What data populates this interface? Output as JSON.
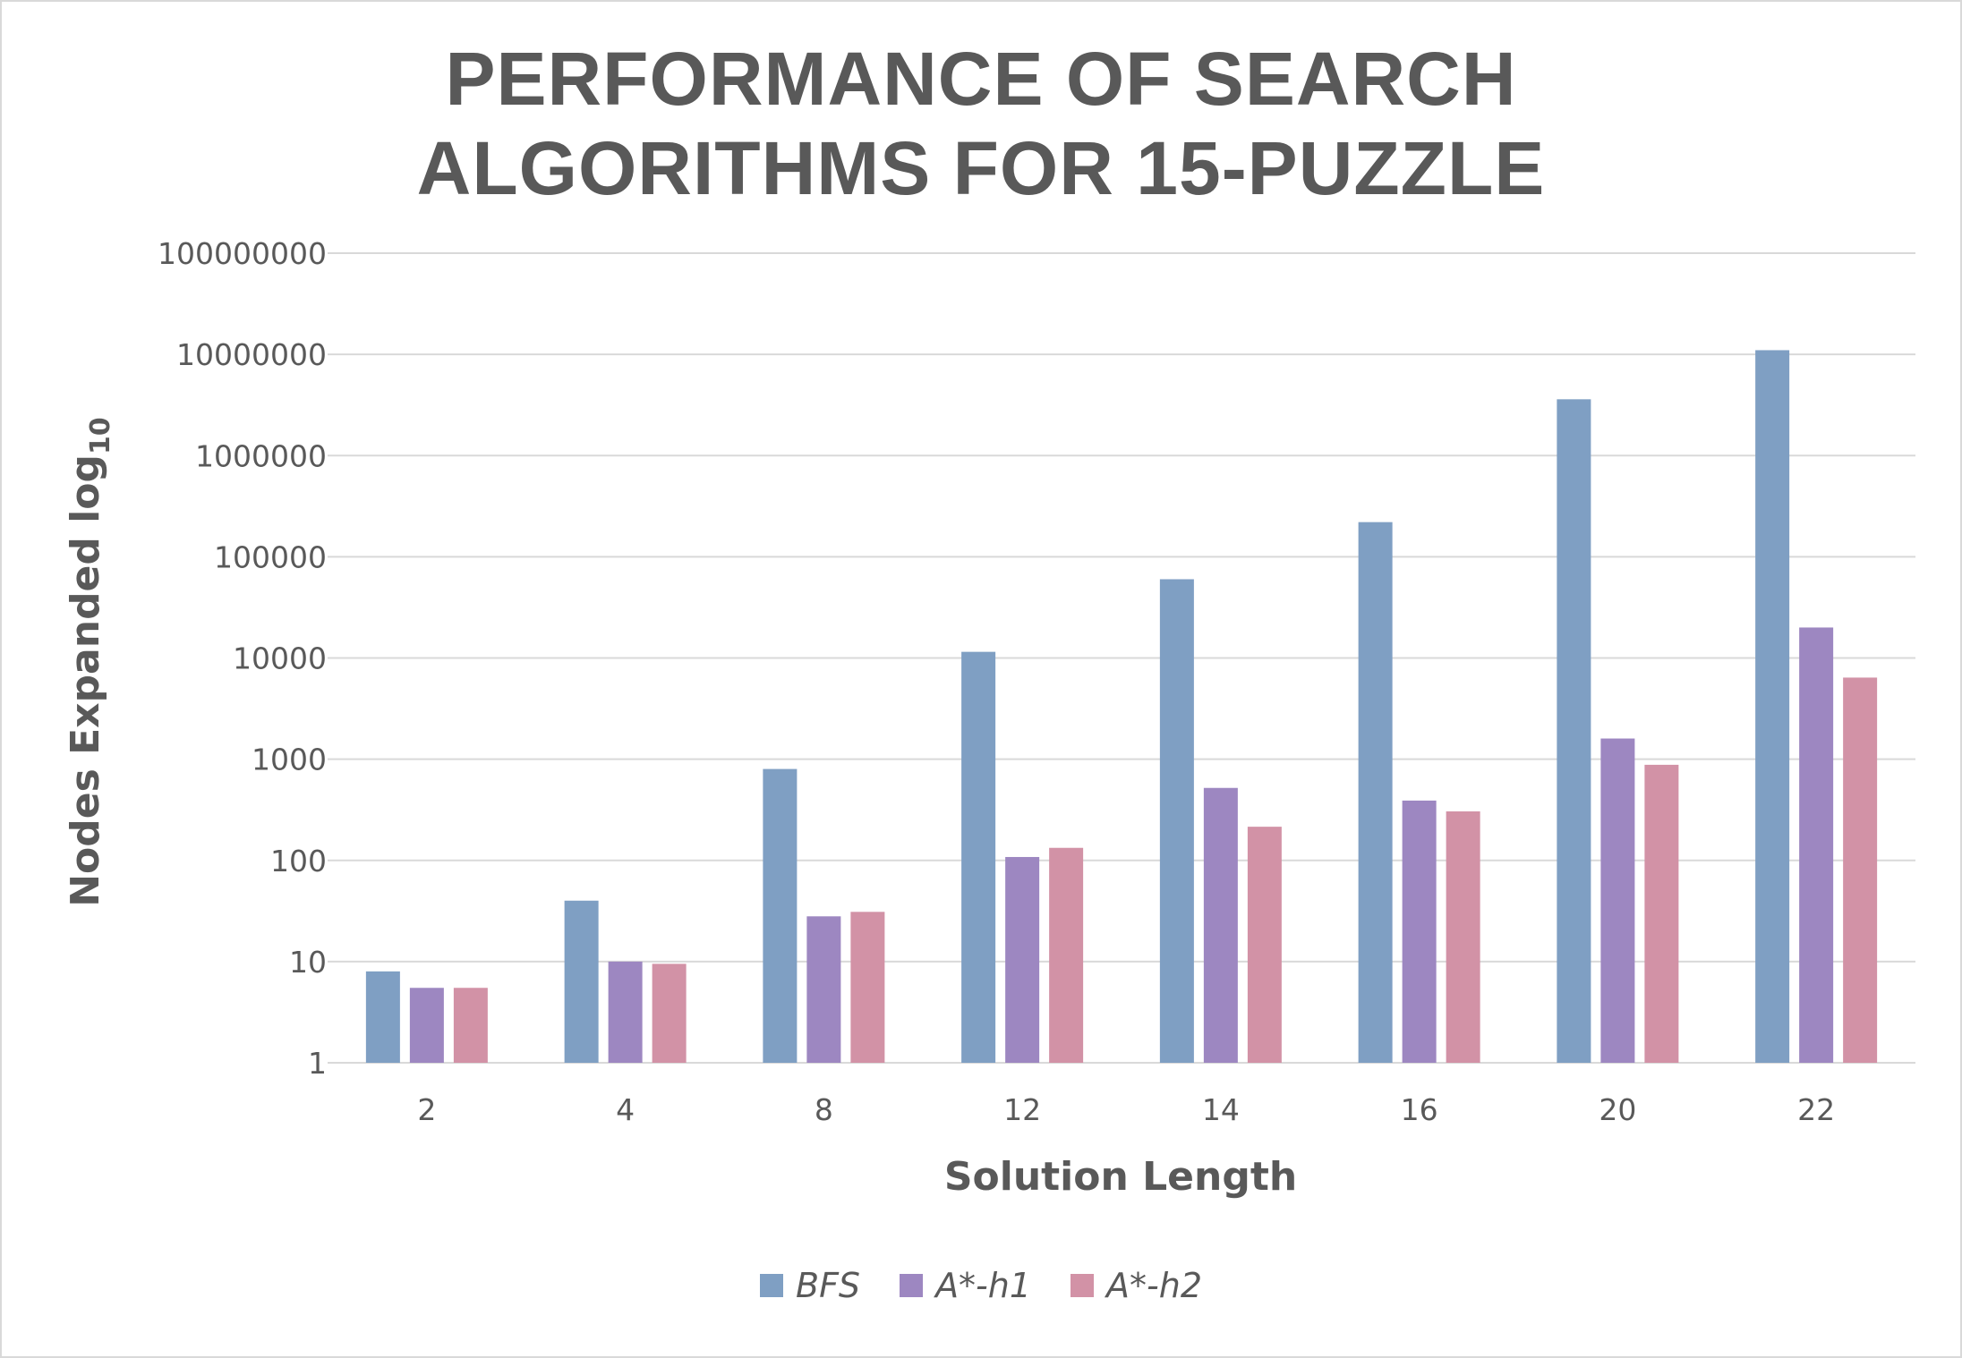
{
  "chart_data": {
    "type": "bar",
    "title_lines": [
      "PERFORMANCE OF SEARCH",
      "ALGORITHMS FOR 15-PUZZLE"
    ],
    "xlabel": "Solution Length",
    "ylabel": "Nodes Expanded log",
    "ylabel_sub": "10",
    "y_scale": "log",
    "ylim": [
      1,
      100000000
    ],
    "y_ticks": [
      "1",
      "10",
      "100",
      "1000",
      "10000",
      "100000",
      "1000000",
      "10000000",
      "100000000"
    ],
    "grid": true,
    "legend_position": "bottom",
    "categories": [
      "2",
      "4",
      "8",
      "12",
      "14",
      "16",
      "20",
      "22"
    ],
    "series": [
      {
        "name": "BFS",
        "color": "#7f9fc3",
        "values": [
          8,
          40,
          800,
          11500,
          60000,
          220000,
          3600000,
          11000000
        ]
      },
      {
        "name": "A*-h1",
        "color": "#9d87c1",
        "values": [
          5.5,
          10,
          28,
          108,
          520,
          390,
          1600,
          20000
        ]
      },
      {
        "name": "A*-h2",
        "color": "#d292a6",
        "values": [
          5.5,
          9.5,
          31,
          133,
          215,
          305,
          880,
          6400
        ]
      }
    ]
  }
}
